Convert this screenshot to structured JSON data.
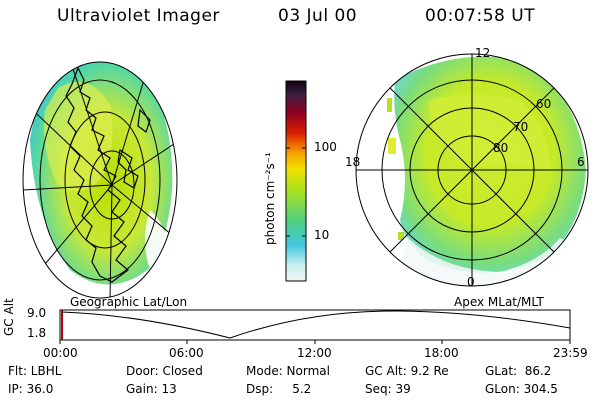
{
  "header": {
    "title": "Ultraviolet Imager",
    "date": "03 Jul 00",
    "time": "00:07:58 UT"
  },
  "colorbar": {
    "unit_label": "photon cm⁻²s⁻¹",
    "ticks": [
      "100",
      "10"
    ]
  },
  "apex_plot": {
    "mlt_labels": [
      "12",
      "18",
      "6",
      "0"
    ],
    "mlat_labels": [
      "60",
      "70",
      "80"
    ]
  },
  "captions": {
    "left": "Geographic Lat/Lon",
    "right": "Apex MLat/MLT"
  },
  "timeline": {
    "axis_label": "GC Alt",
    "y_ticks": [
      "9.0",
      "1.8"
    ],
    "x_ticks": [
      "00:00",
      "06:00",
      "12:00",
      "18:00",
      "23:59"
    ]
  },
  "info": {
    "row1": {
      "flt": "Flt: LBHL",
      "door": "Door: Closed",
      "mode": "Mode: Normal",
      "gcalt": "GC Alt: 9.2 Re",
      "glat": "GLat:  86.2"
    },
    "row2": {
      "ip": "IP: 36.0",
      "gain": "Gain: 13",
      "dsp": "Dsp:     5.2",
      "seq": "Seq: 39",
      "glon": "GLon: 304.5"
    }
  }
}
